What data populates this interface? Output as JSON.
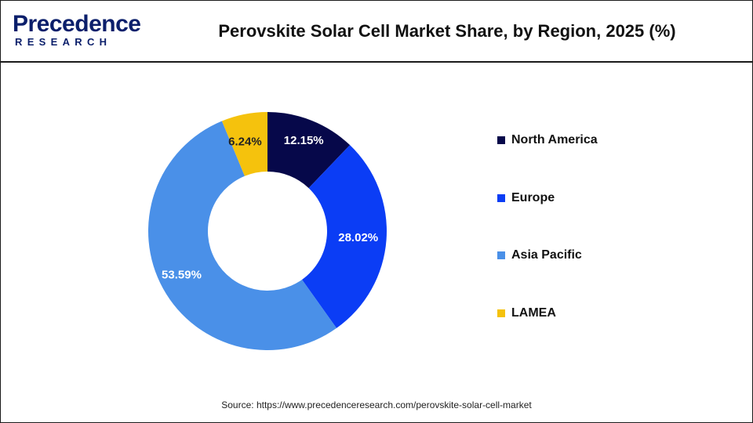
{
  "logo": {
    "top": "Precedence",
    "bottom": "RESEARCH"
  },
  "colors": {
    "brand": "#0b1f6b",
    "north_america": "#06084a",
    "europe": "#0b3df5",
    "asia_pacific": "#4a90e8",
    "lamea": "#f5c20d"
  },
  "chart_data": {
    "type": "pie",
    "style": "donut",
    "title": "Perovskite Solar Cell Market Share, by Region, 2025 (%)",
    "unit": "%",
    "legend_position": "right",
    "slices": [
      {
        "label": "North America",
        "value": 12.15,
        "display": "12.15%",
        "color": "#06084a"
      },
      {
        "label": "Europe",
        "value": 28.02,
        "display": "28.02%",
        "color": "#0b3df5"
      },
      {
        "label": "Asia Pacific",
        "value": 53.59,
        "display": "53.59%",
        "color": "#4a90e8"
      },
      {
        "label": "LAMEA",
        "value": 6.24,
        "display": "6.24%",
        "color": "#f5c20d"
      }
    ]
  },
  "source": "Source: https://www.precedenceresearch.com/perovskite-solar-cell-market"
}
